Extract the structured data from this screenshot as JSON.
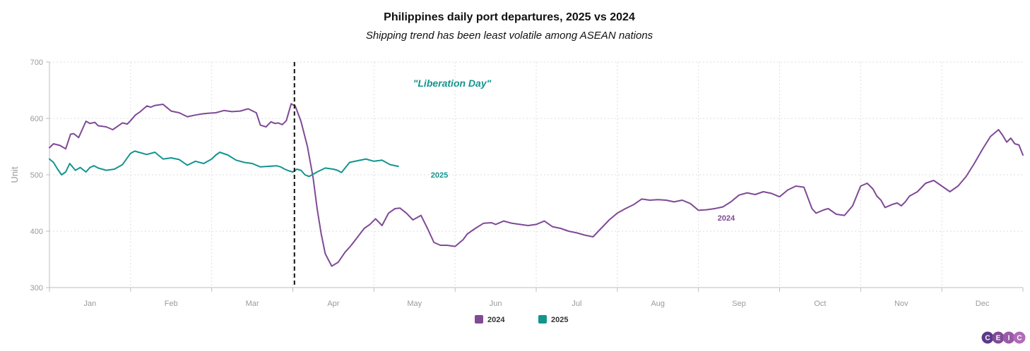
{
  "chart_data": {
    "type": "line",
    "title": "Philippines daily port departures, 2025 vs 2024",
    "subtitle": "Shipping trend has been least volatile among ASEAN nations",
    "ylabel": "Unit",
    "xlabel": "",
    "ylim": [
      300,
      700
    ],
    "yticks": [
      300,
      400,
      500,
      600,
      700
    ],
    "xlim": [
      0,
      12
    ],
    "months": [
      "Jan",
      "Feb",
      "Mar",
      "Apr",
      "May",
      "Jun",
      "Jul",
      "Aug",
      "Sep",
      "Oct",
      "Nov",
      "Dec"
    ],
    "grid": true,
    "legend_position": "bottom-center",
    "annotation": {
      "text": "\"Liberation Day\"",
      "x": 3.02,
      "color": "#14948f"
    },
    "series": [
      {
        "name": "2024",
        "label": "2024",
        "color": "#7f4a96",
        "x": [
          0.0,
          0.05,
          0.13,
          0.2,
          0.26,
          0.3,
          0.36,
          0.45,
          0.5,
          0.56,
          0.6,
          0.7,
          0.78,
          0.86,
          0.9,
          0.96,
          1.0,
          1.06,
          1.12,
          1.2,
          1.25,
          1.3,
          1.4,
          1.45,
          1.5,
          1.6,
          1.7,
          1.8,
          1.88,
          1.95,
          2.05,
          2.15,
          2.25,
          2.35,
          2.45,
          2.55,
          2.6,
          2.67,
          2.73,
          2.78,
          2.82,
          2.87,
          2.92,
          2.98,
          3.03,
          3.1,
          3.18,
          3.25,
          3.3,
          3.35,
          3.4,
          3.48,
          3.56,
          3.64,
          3.72,
          3.8,
          3.88,
          3.95,
          4.02,
          4.1,
          4.18,
          4.26,
          4.32,
          4.4,
          4.48,
          4.58,
          4.66,
          4.74,
          4.82,
          4.9,
          5.0,
          5.1,
          5.15,
          5.25,
          5.35,
          5.45,
          5.5,
          5.6,
          5.7,
          5.8,
          5.9,
          6.0,
          6.1,
          6.2,
          6.3,
          6.4,
          6.5,
          6.6,
          6.7,
          6.8,
          6.9,
          7.0,
          7.1,
          7.2,
          7.3,
          7.4,
          7.5,
          7.6,
          7.7,
          7.8,
          7.9,
          8.0,
          8.1,
          8.2,
          8.3,
          8.4,
          8.5,
          8.6,
          8.7,
          8.8,
          8.9,
          9.0,
          9.1,
          9.2,
          9.3,
          9.4,
          9.45,
          9.5,
          9.55,
          9.6,
          9.7,
          9.8,
          9.9,
          10.0,
          10.08,
          10.15,
          10.2,
          10.25,
          10.3,
          10.4,
          10.45,
          10.5,
          10.55,
          10.6,
          10.7,
          10.8,
          10.9,
          11.0,
          11.1,
          11.2,
          11.3,
          11.4,
          11.5,
          11.6,
          11.7,
          11.75,
          11.8,
          11.85,
          11.9,
          11.95,
          12.0
        ],
        "values": [
          548,
          555,
          552,
          546,
          572,
          573,
          566,
          595,
          591,
          593,
          587,
          585,
          580,
          588,
          592,
          590,
          596,
          606,
          612,
          622,
          620,
          623,
          625,
          619,
          613,
          610,
          603,
          606,
          608,
          609,
          610,
          614,
          612,
          613,
          617,
          610,
          588,
          585,
          594,
          591,
          592,
          589,
          596,
          626,
          622,
          595,
          550,
          495,
          440,
          395,
          360,
          338,
          345,
          362,
          375,
          390,
          405,
          412,
          422,
          410,
          432,
          440,
          441,
          432,
          420,
          428,
          405,
          380,
          375,
          375,
          373,
          385,
          395,
          405,
          414,
          415,
          412,
          418,
          414,
          412,
          410,
          412,
          418,
          408,
          405,
          400,
          397,
          393,
          390,
          405,
          420,
          432,
          440,
          447,
          457,
          455,
          456,
          455,
          452,
          455,
          449,
          437,
          438,
          440,
          443,
          452,
          464,
          468,
          465,
          470,
          467,
          461,
          473,
          480,
          478,
          440,
          432,
          435,
          438,
          440,
          430,
          428,
          445,
          480,
          485,
          475,
          462,
          455,
          442,
          448,
          450,
          445,
          452,
          462,
          470,
          485,
          490,
          480,
          470,
          480,
          497,
          520,
          545,
          568,
          580,
          570,
          558,
          565,
          555,
          553,
          535
        ]
      },
      {
        "name": "2025",
        "label": "2025",
        "color": "#14948f",
        "x": [
          0.0,
          0.05,
          0.1,
          0.15,
          0.2,
          0.25,
          0.32,
          0.38,
          0.45,
          0.5,
          0.55,
          0.6,
          0.7,
          0.8,
          0.9,
          1.0,
          1.05,
          1.1,
          1.2,
          1.3,
          1.4,
          1.5,
          1.6,
          1.65,
          1.7,
          1.8,
          1.9,
          2.0,
          2.05,
          2.1,
          2.2,
          2.3,
          2.4,
          2.5,
          2.6,
          2.7,
          2.8,
          2.85,
          2.9,
          2.95,
          3.0,
          3.05,
          3.1,
          3.15,
          3.2,
          3.3,
          3.4,
          3.5,
          3.55,
          3.6,
          3.7,
          3.8,
          3.9,
          4.0,
          4.1,
          4.2,
          4.3
        ],
        "values": [
          528,
          522,
          510,
          500,
          505,
          520,
          508,
          513,
          505,
          513,
          516,
          512,
          508,
          510,
          518,
          538,
          542,
          540,
          536,
          540,
          528,
          530,
          527,
          522,
          517,
          524,
          520,
          528,
          535,
          540,
          535,
          526,
          522,
          520,
          514,
          515,
          516,
          514,
          510,
          507,
          505,
          510,
          508,
          500,
          497,
          505,
          512,
          510,
          508,
          504,
          522,
          525,
          528,
          524,
          526,
          518,
          515
        ]
      }
    ]
  },
  "logo": {
    "letters": [
      "C",
      "E",
      "I",
      "C"
    ],
    "colors": [
      "#5b3a8a",
      "#7f4a96",
      "#9a5aa8",
      "#b06cb8"
    ]
  }
}
